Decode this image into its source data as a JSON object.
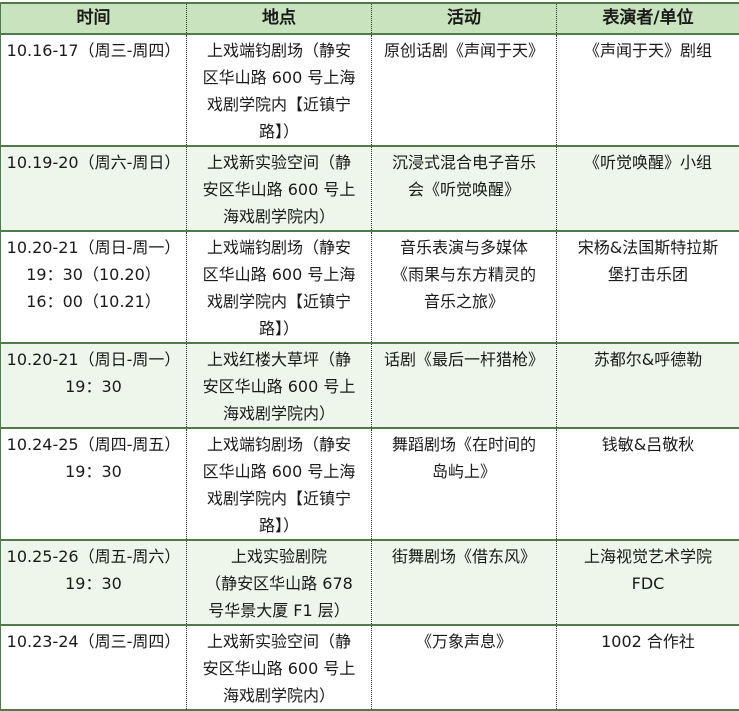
{
  "table": {
    "headers": [
      "时间",
      "地点",
      "活动",
      "表演者/单位"
    ],
    "rows": [
      {
        "time": [
          "10.16-17（周三-周四）"
        ],
        "venue": [
          "上戏端钧剧场（静安",
          "区华山路 600 号上海",
          "戏剧学院内【近镇宁",
          "路】）"
        ],
        "activity": [
          "原创话剧《声闻于天》"
        ],
        "performer": [
          "《声闻于天》剧组"
        ]
      },
      {
        "time": [
          "10.19-20（周六-周日）"
        ],
        "venue": [
          "上戏新实验空间（静",
          "安区华山路 600 号上",
          "海戏剧学院内）"
        ],
        "activity": [
          "沉浸式混合电子音乐",
          "会《听觉唤醒》"
        ],
        "performer": [
          "《听觉唤醒》小组"
        ]
      },
      {
        "time": [
          "10.20-21（周日-周一）",
          "19：30（10.20）",
          "16：00（10.21）"
        ],
        "venue": [
          "上戏端钧剧场（静安",
          "区华山路 600 号上海",
          "戏剧学院内【近镇宁",
          "路】）"
        ],
        "activity": [
          "音乐表演与多媒体",
          "《雨果与东方精灵的",
          "音乐之旅》"
        ],
        "performer": [
          "宋杨&法国斯特拉斯",
          "堡打击乐团"
        ]
      },
      {
        "time": [
          "10.20-21（周日-周一）",
          "19：30"
        ],
        "venue": [
          "上戏红楼大草坪（静",
          "安区华山路 600 号上",
          "海戏剧学院内）"
        ],
        "activity": [
          "话剧《最后一杆猎枪》"
        ],
        "performer": [
          "苏都尔&呼德勒"
        ]
      },
      {
        "time": [
          "10.24-25（周四-周五）",
          "19：30"
        ],
        "venue": [
          "上戏端钧剧场（静安",
          "区华山路 600 号上海",
          "戏剧学院内【近镇宁",
          "路】）"
        ],
        "activity": [
          "舞蹈剧场《在时间的",
          "岛屿上》"
        ],
        "performer": [
          "钱敏&吕敬秋"
        ]
      },
      {
        "time": [
          "10.25-26（周五-周六）",
          "19：30"
        ],
        "venue": [
          "上戏实验剧院",
          "（静安区华山路 678",
          "号华景大厦 F1 层）"
        ],
        "activity": [
          "街舞剧场《借东风》"
        ],
        "performer": [
          "上海视觉艺术学院",
          "FDC"
        ]
      },
      {
        "time": [
          "10.23-24（周三-周四）"
        ],
        "venue": [
          "上戏新实验空间（静",
          "安区华山路 600 号上",
          "海戏剧学院内）"
        ],
        "activity": [
          "《万象声息》"
        ],
        "performer": [
          "1002 合作社"
        ]
      }
    ]
  },
  "colors": {
    "header_bg": "#c8e3bd",
    "alt_row_bg": "#eef5ea",
    "border": "#4f7a4a"
  }
}
